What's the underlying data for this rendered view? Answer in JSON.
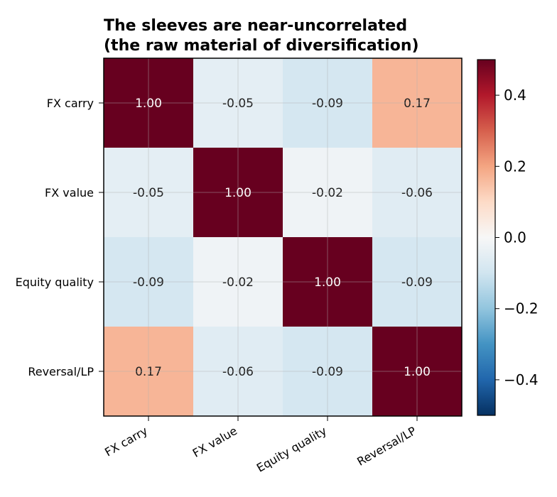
{
  "chart_data": {
    "type": "heatmap",
    "title_lines": [
      "The sleeves are near-uncorrelated",
      "(the raw material of diversification)"
    ],
    "row_labels": [
      "FX carry",
      "FX value",
      "Equity quality",
      "Reversal/LP"
    ],
    "col_labels": [
      "FX carry",
      "FX value",
      "Equity quality",
      "Reversal/LP"
    ],
    "values": [
      [
        1.0,
        -0.05,
        -0.09,
        0.17
      ],
      [
        -0.05,
        1.0,
        -0.02,
        -0.06
      ],
      [
        -0.09,
        -0.02,
        1.0,
        -0.09
      ],
      [
        0.17,
        -0.06,
        -0.09,
        1.0
      ]
    ],
    "cell_labels": [
      [
        "1.00",
        "-0.05",
        "-0.09",
        "0.17"
      ],
      [
        "-0.05",
        "1.00",
        "-0.02",
        "-0.06"
      ],
      [
        "-0.09",
        "-0.02",
        "1.00",
        "-0.09"
      ],
      [
        "0.17",
        "-0.06",
        "-0.09",
        "1.00"
      ]
    ],
    "colormap": "RdBu_r",
    "vmin": -0.5,
    "vmax": 0.5,
    "colorbar_ticks": [
      0.4,
      0.2,
      0.0,
      -0.2,
      -0.4
    ],
    "colorbar_tick_labels": [
      "0.4",
      "0.2",
      "0.0",
      "−0.2",
      "−0.4"
    ],
    "grid": true,
    "x_tick_rotation_deg": 30
  }
}
